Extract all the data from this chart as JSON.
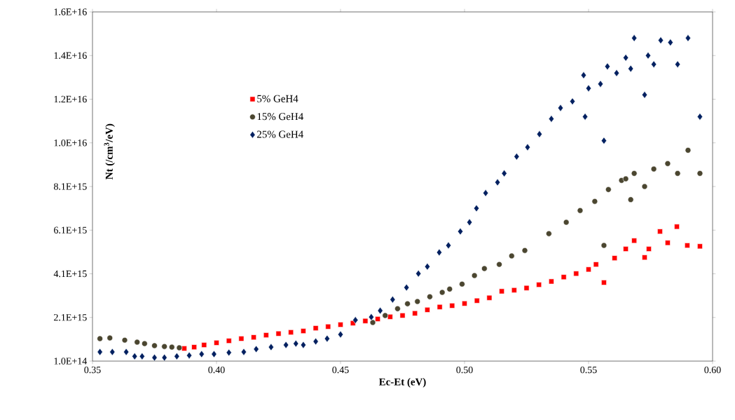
{
  "chart_data": {
    "type": "scatter",
    "xlabel": "Ec-Et (eV)",
    "ylabel": "Nt (/cm$^{3}$/eV)",
    "xlim": [
      0.35,
      0.6
    ],
    "xticks": [
      {
        "value": 0.35,
        "label": "0.35"
      },
      {
        "value": 0.4,
        "label": "0.40"
      },
      {
        "value": 0.45,
        "label": "0.45"
      },
      {
        "value": 0.5,
        "label": "0.50"
      },
      {
        "value": 0.55,
        "label": "0.55"
      },
      {
        "value": 0.6,
        "label": "0.60"
      }
    ],
    "ylim": [
      100000000000000.0,
      1.61e+16
    ],
    "yticks": [
      {
        "value": 100000000000000.0,
        "label": "1.0E+14"
      },
      {
        "value": 2100000000000000.0,
        "label": "2.1E+15"
      },
      {
        "value": 4100000000000000.0,
        "label": "4.1E+15"
      },
      {
        "value": 6100000000000000.0,
        "label": "6.1E+15"
      },
      {
        "value": 8100000000000000.0,
        "label": "8.1E+15"
      },
      {
        "value": 1.01e+16,
        "label": "1.0E+16"
      },
      {
        "value": 1.21e+16,
        "label": "1.2E+16"
      },
      {
        "value": 1.41e+16,
        "label": "1.4E+16"
      },
      {
        "value": 1.61e+16,
        "label": "1.6E+16"
      }
    ],
    "grid": false,
    "legend": "left",
    "series": [
      {
        "name": "5% GeH4",
        "color": "#ff0000",
        "marker": "square",
        "x": [
          0.387,
          0.391,
          0.395,
          0.4,
          0.405,
          0.41,
          0.415,
          0.42,
          0.425,
          0.43,
          0.435,
          0.44,
          0.445,
          0.45,
          0.455,
          0.46,
          0.465,
          0.47,
          0.475,
          0.48,
          0.485,
          0.49,
          0.495,
          0.5,
          0.505,
          0.51,
          0.515,
          0.52,
          0.525,
          0.53,
          0.535,
          0.54,
          0.545,
          0.55,
          0.553,
          0.5562,
          0.5605,
          0.565,
          0.5684,
          0.5726,
          0.5743,
          0.5788,
          0.5819,
          0.5856,
          0.5898,
          0.5949
        ],
        "values": [
          680000000000000.0,
          740000000000000.0,
          840000000000000.0,
          940000000000000.0,
          1030000000000000.0,
          1130000000000000.0,
          1190000000000000.0,
          1290000000000000.0,
          1360000000000000.0,
          1420000000000000.0,
          1480000000000000.0,
          1610000000000000.0,
          1680000000000000.0,
          1770000000000000.0,
          1840000000000000.0,
          1940000000000000.0,
          2030000000000000.0,
          2130000000000000.0,
          2190000000000000.0,
          2290000000000000.0,
          2450000000000000.0,
          2580000000000000.0,
          2640000000000000.0,
          2740000000000000.0,
          2870000000000000.0,
          3000000000000000.0,
          3300000000000000.0,
          3350000000000000.0,
          3450000000000000.0,
          3600000000000000.0,
          3750000000000000.0,
          3950000000000000.0,
          4110000000000000.0,
          4300000000000000.0,
          4530000000000000.0,
          3700000000000000.0,
          4820000000000000.0,
          5240000000000000.0,
          5620000000000000.0,
          4850000000000000.0,
          5240000000000000.0,
          6040000000000000.0,
          5520000000000000.0,
          6260000000000000.0,
          5400000000000000.0,
          5360000000000000.0
        ]
      },
      {
        "name": "15% GeH4",
        "color": "#4b4630",
        "marker": "circle",
        "x": [
          0.353,
          0.357,
          0.363,
          0.368,
          0.371,
          0.375,
          0.379,
          0.382,
          0.385,
          0.463,
          0.468,
          0.473,
          0.477,
          0.481,
          0.486,
          0.491,
          0.494,
          0.499,
          0.504,
          0.508,
          0.514,
          0.519,
          0.5243,
          0.534,
          0.541,
          0.5466,
          0.5525,
          0.5562,
          0.558,
          0.5633,
          0.565,
          0.567,
          0.5684,
          0.5726,
          0.5763,
          0.5819,
          0.5859,
          0.5901,
          0.5949
        ],
        "values": [
          1130000000000000.0,
          1160000000000000.0,
          1060000000000000.0,
          970000000000000.0,
          900000000000000.0,
          810000000000000.0,
          770000000000000.0,
          740000000000000.0,
          710000000000000.0,
          1870000000000000.0,
          2190000000000000.0,
          2500000000000000.0,
          2730000000000000.0,
          2830000000000000.0,
          3050000000000000.0,
          3250000000000000.0,
          3400000000000000.0,
          3630000000000000.0,
          4020000000000000.0,
          4340000000000000.0,
          4530000000000000.0,
          4920000000000000.0,
          5170000000000000.0,
          5940000000000000.0,
          6460000000000000.0,
          7000000000000000.0,
          7420000000000000.0,
          5400000000000000.0,
          7960000000000000.0,
          8380000000000000.0,
          8450000000000000.0,
          7500000000000000.0,
          8700000000000000.0,
          8100000000000000.0,
          8900000000000000.0,
          9150000000000000.0,
          8700000000000000.0,
          9760000000000000.0,
          8700000000000000.0
        ]
      },
      {
        "name": "25% GeH4",
        "color": "#002060",
        "marker": "diamond",
        "x": [
          0.353,
          0.358,
          0.3636,
          0.367,
          0.37,
          0.375,
          0.379,
          0.384,
          0.389,
          0.394,
          0.399,
          0.405,
          0.411,
          0.416,
          0.422,
          0.428,
          0.432,
          0.435,
          0.44,
          0.4446,
          0.45,
          0.456,
          0.4624,
          0.466,
          0.471,
          0.4766,
          0.4814,
          0.485,
          0.4898,
          0.4935,
          0.4983,
          0.502,
          0.5048,
          0.5085,
          0.5133,
          0.516,
          0.521,
          0.5254,
          0.5302,
          0.535,
          0.5387,
          0.5435,
          0.548,
          0.5486,
          0.55,
          0.5548,
          0.5562,
          0.5576,
          0.5613,
          0.565,
          0.567,
          0.5684,
          0.5726,
          0.574,
          0.5763,
          0.5791,
          0.583,
          0.5859,
          0.5901,
          0.5949
        ],
        "values": [
          520000000000000.0,
          520000000000000.0,
          520000000000000.0,
          320000000000000.0,
          320000000000000.0,
          260000000000000.0,
          260000000000000.0,
          320000000000000.0,
          360000000000000.0,
          420000000000000.0,
          420000000000000.0,
          490000000000000.0,
          520000000000000.0,
          650000000000000.0,
          740000000000000.0,
          840000000000000.0,
          900000000000000.0,
          840000000000000.0,
          1000000000000000.0,
          1130000000000000.0,
          1320000000000000.0,
          1980000000000000.0,
          2120000000000000.0,
          2410000000000000.0,
          2920000000000000.0,
          3470000000000000.0,
          4110000000000000.0,
          4430000000000000.0,
          5080000000000000.0,
          5400000000000000.0,
          6040000000000000.0,
          6460000000000000.0,
          7100000000000000.0,
          7800000000000000.0,
          8290000000000000.0,
          8700000000000000.0,
          9470000000000000.0,
          9900000000000000.0,
          1.05e+16,
          1.12e+16,
          1.17e+16,
          1.2e+16,
          1.32e+16,
          1.13e+16,
          1.26e+16,
          1.28e+16,
          1.02e+16,
          1.36e+16,
          1.33e+16,
          1.4e+16,
          1.35e+16,
          1.49e+16,
          1.23e+16,
          1.41e+16,
          1.37e+16,
          1.48e+16,
          1.47e+16,
          1.37e+16,
          1.49e+16,
          1.13e+16
        ]
      }
    ]
  }
}
